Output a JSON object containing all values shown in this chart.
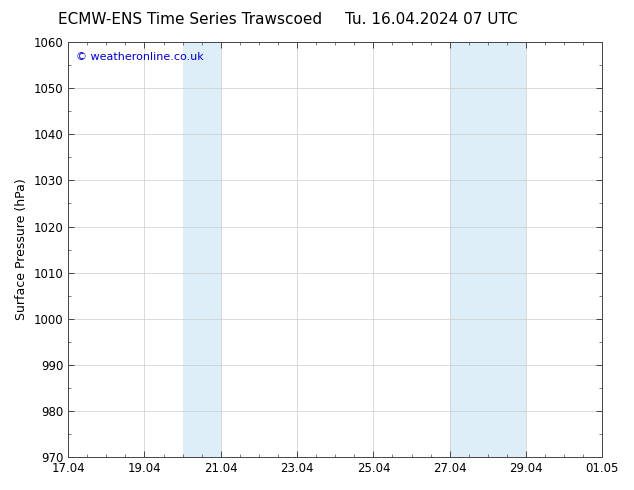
{
  "title_left": "ECMW-ENS Time Series Trawscoed",
  "title_right": "Tu. 16.04.2024 07 UTC",
  "ylabel": "Surface Pressure (hPa)",
  "ylim": [
    970,
    1060
  ],
  "yticks": [
    970,
    980,
    990,
    1000,
    1010,
    1020,
    1030,
    1040,
    1050,
    1060
  ],
  "xlim": [
    0,
    14
  ],
  "xtick_labels": [
    "17.04",
    "19.04",
    "21.04",
    "23.04",
    "25.04",
    "27.04",
    "29.04",
    "01.05"
  ],
  "xtick_positions": [
    0,
    2,
    4,
    6,
    8,
    10,
    12,
    14
  ],
  "shade_bands": [
    {
      "x_start": 3.0,
      "x_end": 4.0,
      "color": "#ddeef8"
    },
    {
      "x_start": 10.0,
      "x_end": 12.0,
      "color": "#ddeef8"
    }
  ],
  "watermark_text": "© weatheronline.co.uk",
  "watermark_color": "#0000cc",
  "background_color": "#ffffff",
  "plot_background": "#ffffff",
  "grid_color": "#cccccc",
  "title_fontsize": 11,
  "label_fontsize": 9,
  "tick_fontsize": 8.5
}
